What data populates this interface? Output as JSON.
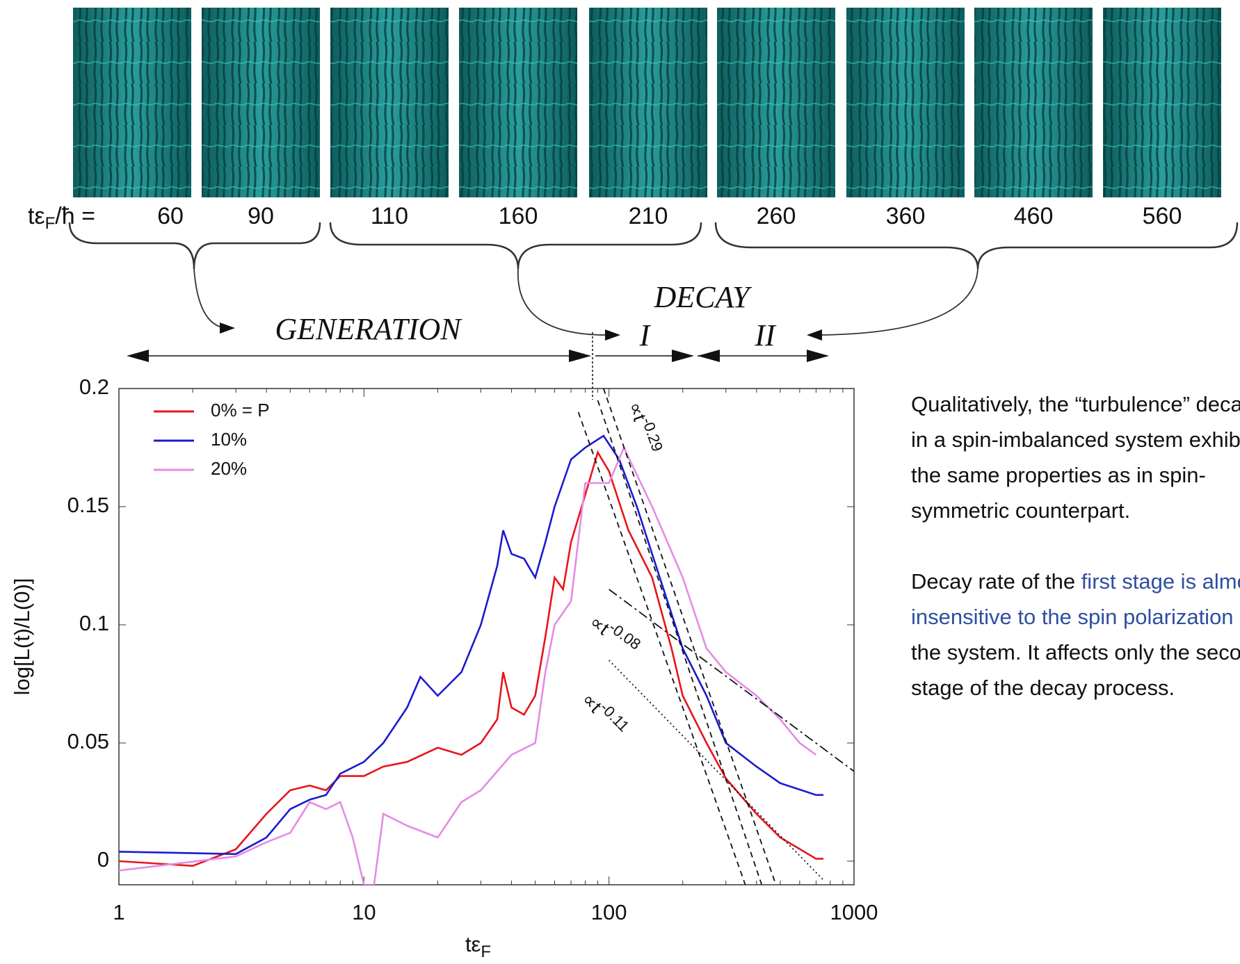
{
  "snapshots": {
    "prefix": {
      "main": "tε",
      "sub": "F",
      "rest": "/ħ  ="
    },
    "times": [
      "60",
      "90",
      "110",
      "160",
      "210",
      "260",
      "360",
      "460",
      "560"
    ]
  },
  "stages": {
    "generation": "GENERATION",
    "decay": "DECAY",
    "stage_1": "I",
    "stage_2": "II"
  },
  "chart_data": {
    "type": "line",
    "y_label": "log[L(t)/L(0)]",
    "x_label": {
      "main": "tε",
      "sub": "F"
    },
    "log_x": true,
    "xlim": [
      1,
      1000
    ],
    "xticks": [
      1,
      10,
      100,
      1000
    ],
    "ylim": [
      -0.01,
      0.2
    ],
    "yticks": [
      0,
      0.05,
      {
        "value": 0.1,
        "label": "0.1"
      },
      0.15,
      {
        "value": 0.2,
        "label": "0.2"
      }
    ],
    "legend": "upper left",
    "series": [
      {
        "name": "0%  = P",
        "color": "#e8141b",
        "x": [
          1,
          2,
          3,
          4,
          5,
          6,
          7,
          8,
          10,
          12,
          15,
          20,
          25,
          30,
          35,
          37,
          40,
          45,
          50,
          55,
          60,
          65,
          70,
          80,
          90,
          100,
          120,
          150,
          180,
          200,
          250,
          300,
          400,
          500,
          700,
          750
        ],
        "values": [
          0,
          -0.002,
          0.005,
          0.02,
          0.03,
          0.032,
          0.03,
          0.036,
          0.036,
          0.04,
          0.042,
          0.048,
          0.045,
          0.05,
          0.06,
          0.08,
          0.065,
          0.062,
          0.07,
          0.095,
          0.12,
          0.115,
          0.135,
          0.155,
          0.173,
          0.165,
          0.14,
          0.12,
          0.09,
          0.07,
          0.05,
          0.035,
          0.02,
          0.01,
          0.001,
          0.001
        ]
      },
      {
        "name": "10%",
        "color": "#1a1ad0",
        "x": [
          1,
          3,
          4,
          5,
          6,
          7,
          8,
          10,
          12,
          15,
          17,
          20,
          25,
          30,
          35,
          37,
          40,
          45,
          50,
          55,
          60,
          70,
          80,
          95,
          110,
          130,
          150,
          200,
          250,
          300,
          400,
          500,
          700,
          750
        ],
        "values": [
          0.004,
          0.003,
          0.01,
          0.022,
          0.026,
          0.028,
          0.037,
          0.042,
          0.05,
          0.065,
          0.078,
          0.07,
          0.08,
          0.1,
          0.125,
          0.14,
          0.13,
          0.128,
          0.12,
          0.135,
          0.15,
          0.17,
          0.175,
          0.18,
          0.17,
          0.15,
          0.13,
          0.09,
          0.07,
          0.05,
          0.04,
          0.033,
          0.028,
          0.028
        ]
      },
      {
        "name": "20%",
        "color": "#e58be5",
        "x": [
          1,
          3,
          4,
          5,
          6,
          7,
          8,
          9,
          10,
          11,
          12,
          15,
          20,
          25,
          30,
          40,
          50,
          55,
          60,
          70,
          80,
          100,
          115,
          150,
          200,
          250,
          300,
          400,
          500,
          600,
          700
        ],
        "values": [
          -0.004,
          0.002,
          0.008,
          0.012,
          0.025,
          0.022,
          0.025,
          0.01,
          -0.01,
          -0.01,
          0.02,
          0.015,
          0.01,
          0.025,
          0.03,
          0.045,
          0.05,
          0.08,
          0.1,
          0.11,
          0.16,
          0.16,
          0.175,
          0.15,
          0.12,
          0.09,
          0.08,
          0.07,
          0.06,
          0.05,
          0.045
        ]
      }
    ],
    "reference_lines": [
      {
        "label": {
          "base": "∝t",
          "exp": "-0.29"
        },
        "style": "dashed",
        "x": [
          75,
          360
        ],
        "values": [
          0.19,
          -0.01
        ]
      },
      {
        "style": "dashed",
        "x": [
          90,
          420
        ],
        "values": [
          0.195,
          -0.01
        ]
      },
      {
        "style": "dashed",
        "x": [
          95,
          480
        ],
        "values": [
          0.2,
          -0.01
        ]
      },
      {
        "label": {
          "base": "∝t",
          "exp": "-0.08"
        },
        "style": "dashdot",
        "x": [
          100,
          1000
        ],
        "values": [
          0.115,
          0.038
        ]
      },
      {
        "label": {
          "base": "∝t",
          "exp": "-0.11"
        },
        "style": "dotted",
        "x": [
          100,
          750
        ],
        "values": [
          0.085,
          -0.008
        ]
      }
    ]
  },
  "notes": {
    "paragraph_1": "Qualitatively, the “turbulence” decay in a spin-imbalanced system exhibits the same properties as in spin-symmetric counterpart.",
    "paragraph_2": {
      "before": "Decay rate of the ",
      "highlight": "first stage is almost insensitive to the spin polarization",
      "after": " of the system. It affects only the second stage of the decay process."
    }
  }
}
